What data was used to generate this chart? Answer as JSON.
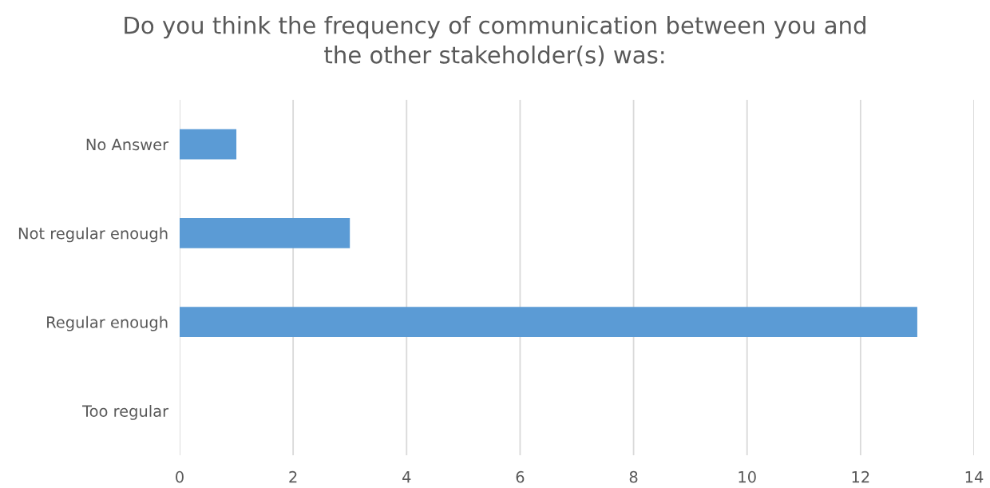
{
  "chart_data": {
    "type": "bar",
    "orientation": "horizontal",
    "title": "Do you think the frequency of communication between you and\nthe other stakeholder(s) was:",
    "categories": [
      "No Answer",
      "Not regular enough",
      "Regular enough",
      "Too regular"
    ],
    "values": [
      1,
      3,
      13,
      0
    ],
    "color": "#5b9bd5",
    "xlim": [
      0,
      14
    ],
    "xticks": [
      0,
      2,
      4,
      6,
      8,
      10,
      12,
      14
    ],
    "grid": "x"
  }
}
